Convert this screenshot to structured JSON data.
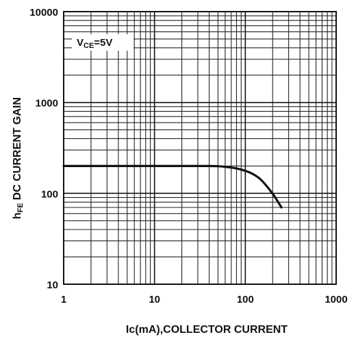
{
  "chart_data": {
    "type": "line",
    "title": "",
    "xlabel": "Ic(mA),COLLECTOR CURRENT",
    "ylabel": "hFE DC CURRENT GAIN",
    "ylabel_parts": {
      "sym": "h",
      "sub": "FE",
      "rest": "DC CURRENT GAIN"
    },
    "x_scale": "log",
    "y_scale": "log",
    "xlim": [
      1,
      1000
    ],
    "ylim": [
      10,
      10000
    ],
    "x_ticks": [
      1,
      10,
      100,
      1000
    ],
    "x_tick_labels": [
      "1",
      "10",
      "100",
      "1000"
    ],
    "y_ticks": [
      10,
      100,
      1000,
      10000
    ],
    "y_tick_labels": [
      "10",
      "100",
      "1000",
      "10000"
    ],
    "grid": true,
    "legend": "none",
    "annotations": [
      {
        "text_main": "V",
        "text_sub": "CE",
        "text_rest": "=5V"
      }
    ],
    "series": [
      {
        "x": [
          1,
          2,
          5,
          10,
          20,
          40,
          50,
          60,
          80,
          100,
          120,
          150,
          200,
          250
        ],
        "y": [
          200,
          200,
          200,
          200,
          200,
          200,
          199,
          196,
          188,
          177,
          164,
          140,
          99,
          70
        ]
      }
    ]
  }
}
